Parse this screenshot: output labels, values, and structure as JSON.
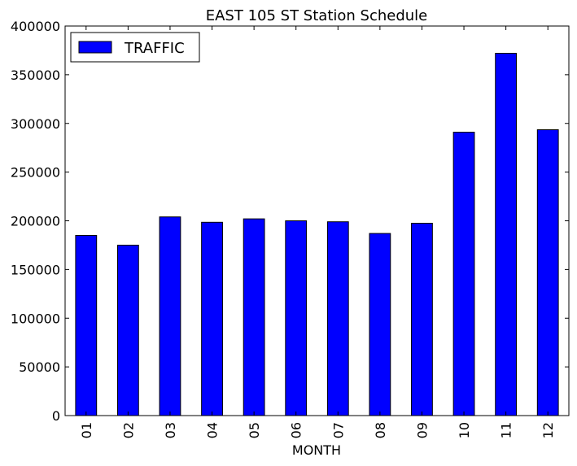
{
  "chart_data": {
    "type": "bar",
    "title": "EAST 105 ST Station Schedule",
    "xlabel": "MONTH",
    "ylabel": "",
    "categories": [
      "01",
      "02",
      "03",
      "04",
      "05",
      "06",
      "07",
      "08",
      "09",
      "10",
      "11",
      "12"
    ],
    "series": [
      {
        "name": "TRAFFIC",
        "color": "#0000ff",
        "values": [
          185000,
          175000,
          204000,
          198500,
          202000,
          200000,
          199000,
          187000,
          197500,
          291000,
          372000,
          293500
        ]
      }
    ],
    "ylim": [
      0,
      400000
    ],
    "yticks": [
      "0",
      "50000",
      "100000",
      "150000",
      "200000",
      "250000",
      "300000",
      "350000",
      "400000"
    ],
    "legend_position": "top-left",
    "grid": false
  }
}
